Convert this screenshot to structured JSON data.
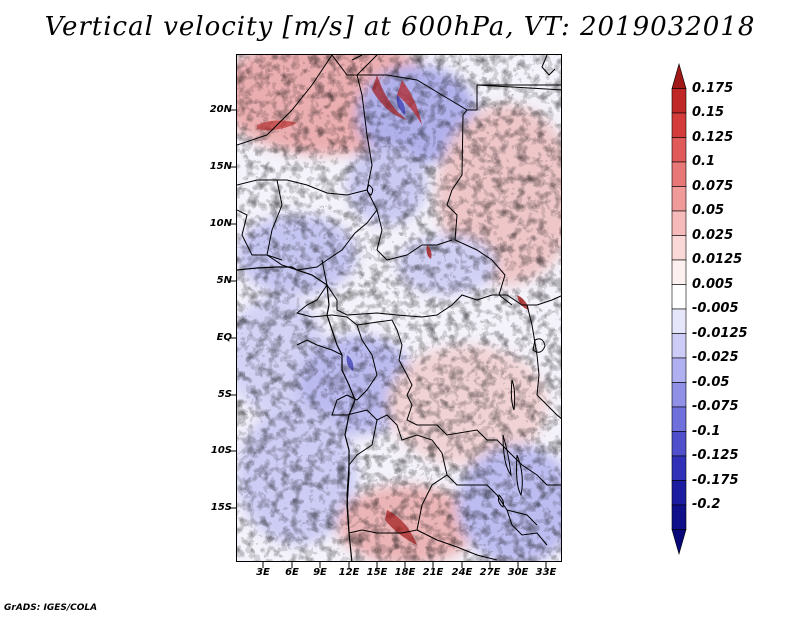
{
  "title": "Vertical velocity [m/s] at 600hPa, VT: 2019032018",
  "footer": "GrADS: IGES/COLA",
  "map": {
    "variable": "Vertical velocity",
    "units": "m/s",
    "level": "600hPa",
    "valid_time": "2019032018",
    "lat_labels": [
      "20N",
      "15N",
      "10N",
      "5N",
      "EQ",
      "5S",
      "10S",
      "15S"
    ],
    "lon_labels": [
      "3E",
      "6E",
      "9E",
      "12E",
      "15E",
      "18E",
      "21E",
      "24E",
      "27E",
      "30E",
      "33E"
    ]
  },
  "colorbar": {
    "labels": [
      "0.175",
      "0.15",
      "0.125",
      "0.1",
      "0.075",
      "0.05",
      "0.025",
      "0.0125",
      "0.005",
      "-0.005",
      "-0.0125",
      "-0.025",
      "-0.05",
      "-0.075",
      "-0.1",
      "-0.125",
      "-0.175",
      "-0.2"
    ],
    "colors": [
      "#a01818",
      "#c02828",
      "#d43c3c",
      "#e05a5a",
      "#e87878",
      "#f09a9a",
      "#f6baba",
      "#fad8d8",
      "#fdf0f0",
      "#ffffff",
      "#e6e6fb",
      "#ccccf6",
      "#b0b0f0",
      "#9090e6",
      "#7070dc",
      "#5050cc",
      "#3030b8",
      "#1c1ca0",
      "#10108a",
      "#08087a"
    ]
  }
}
